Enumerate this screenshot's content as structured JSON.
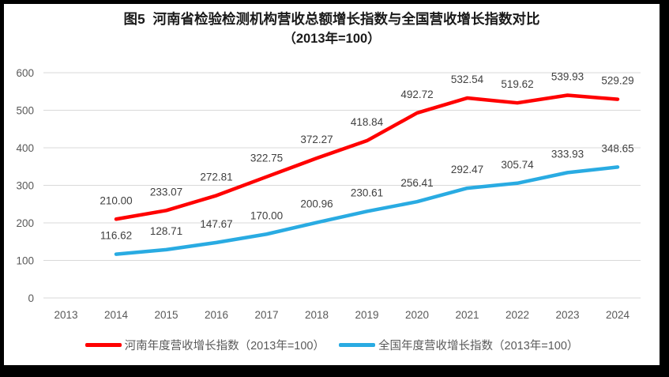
{
  "title": {
    "line1": "图5  河南省检验检测机构营收总额增长指数与全国营收增长指数对比",
    "line2": "（2013年=100）"
  },
  "chart_data": {
    "type": "line",
    "title": "图5 河南省检验检测机构营收总额增长指数与全国营收增长指数对比（2013年=100）",
    "categories": [
      "2013",
      "2014",
      "2015",
      "2016",
      "2017",
      "2018",
      "2019",
      "2020",
      "2021",
      "2022",
      "2023",
      "2024"
    ],
    "series": [
      {
        "name": "河南年度营收增长指数（2013年=100）",
        "color": "#FF0000",
        "values": [
          null,
          210.0,
          233.07,
          272.81,
          322.75,
          372.27,
          418.84,
          492.72,
          532.54,
          519.62,
          539.93,
          529.29
        ]
      },
      {
        "name": "全国年度营收增长指数（2013年=100）",
        "color": "#29ABE2",
        "values": [
          null,
          116.62,
          128.71,
          147.67,
          170.0,
          200.96,
          230.61,
          256.41,
          292.47,
          305.74,
          333.93,
          348.65
        ]
      }
    ],
    "xlabel": "",
    "ylabel": "",
    "ylim": [
      0,
      600
    ],
    "ytick_step": 100,
    "grid": true,
    "legend_position": "bottom",
    "data_labels": true,
    "data_label_decimals": 2
  },
  "colors": {
    "frame_border": "#000000",
    "panel_background": "#FFFFFF",
    "grid_line": "#D9D9D9",
    "axis_tick_text": "#595959",
    "data_label_text": "#404040",
    "title_text": "#1a1a1a",
    "legend_text": "#595959"
  }
}
